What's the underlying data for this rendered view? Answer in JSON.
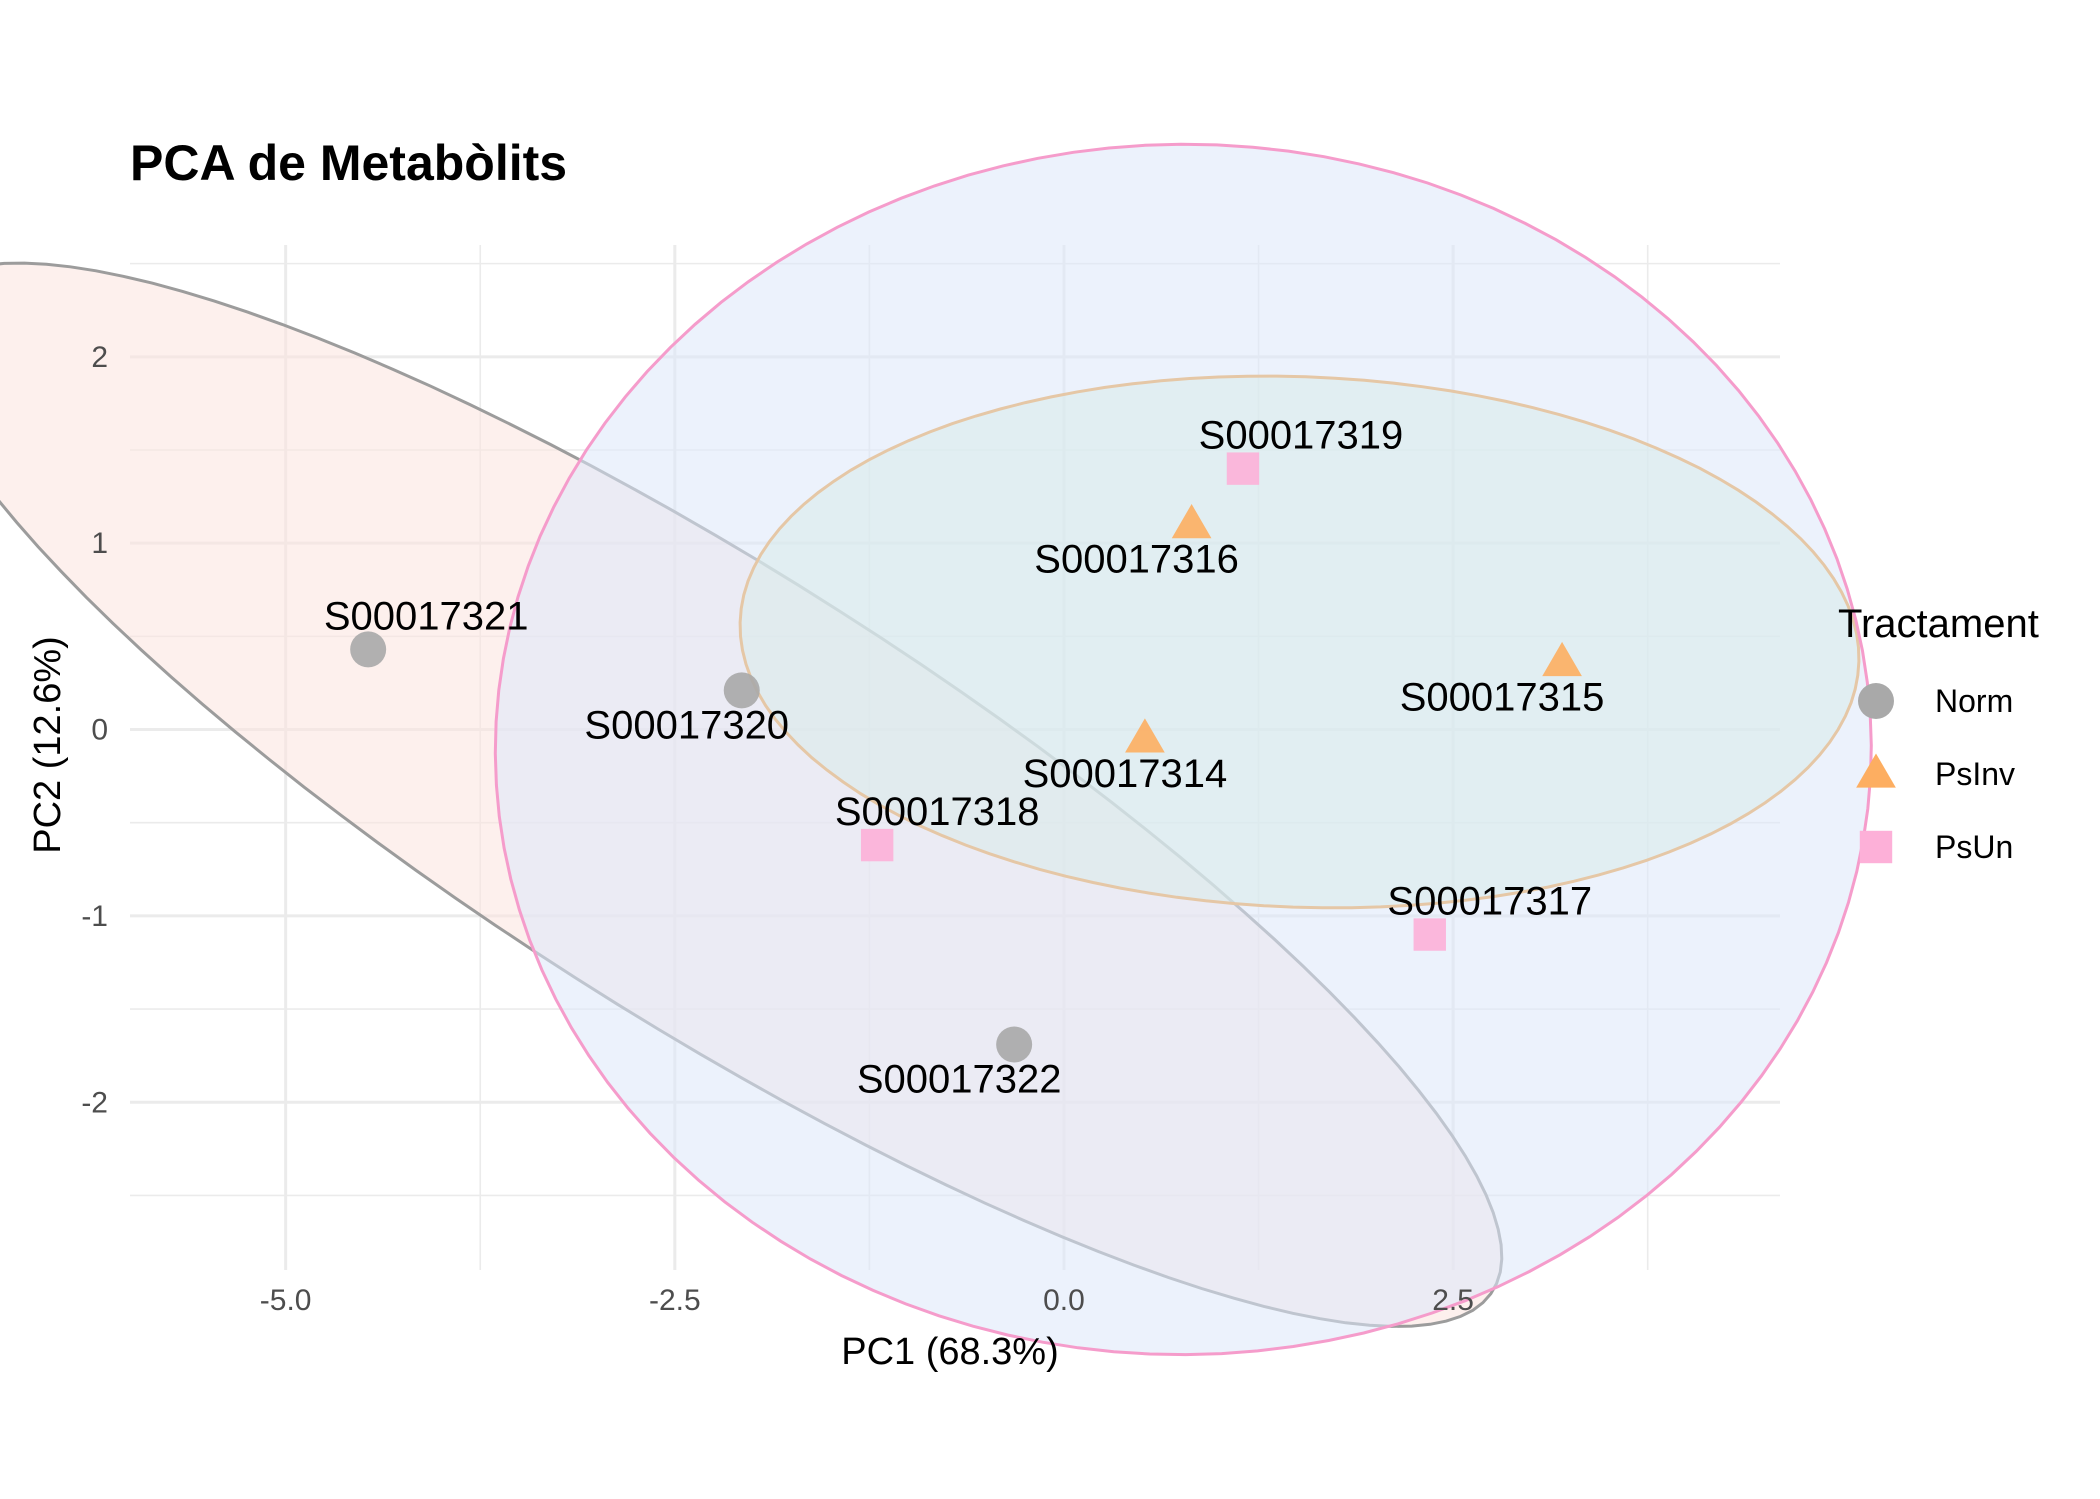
{
  "chart_data": {
    "type": "scatter",
    "title": "PCA de Metabòlits",
    "xlabel": "PC1 (68.3%)",
    "ylabel": "PC2 (12.6%)",
    "xlim": [
      -6.0,
      4.6
    ],
    "ylim": [
      -2.9,
      2.6
    ],
    "x_ticks": [
      -5.0,
      -2.5,
      0.0,
      2.5
    ],
    "x_tick_labels": [
      "-5.0",
      "-2.5",
      "0.0",
      "2.5"
    ],
    "y_ticks": [
      -2,
      -1,
      0,
      1,
      2
    ],
    "y_tick_labels": [
      "-2",
      "-1",
      "0",
      "1",
      "2"
    ],
    "grid": true,
    "legend": {
      "title": "Tractament",
      "placement": "right",
      "entries": [
        {
          "name": "Norm",
          "shape": "circle",
          "color": "#A9A9A9"
        },
        {
          "name": "PsInv",
          "shape": "triangle",
          "color": "#FDAE61"
        },
        {
          "name": "PsUn",
          "shape": "square",
          "color": "#FDB0D8"
        }
      ]
    },
    "series": [
      {
        "name": "Norm",
        "shape": "circle",
        "color": "#A9A9A9",
        "ellipse_stroke": "#9C9C9C",
        "ellipse_fill": "#FBE3DF",
        "points": [
          {
            "label": "S00017321",
            "x": -4.47,
            "y": 0.43
          },
          {
            "label": "S00017320",
            "x": -2.07,
            "y": 0.21
          },
          {
            "label": "S00017322",
            "x": -0.32,
            "y": -1.69
          }
        ]
      },
      {
        "name": "PsInv",
        "shape": "triangle",
        "color": "#FDAE61",
        "ellipse_stroke": "#F0A040",
        "ellipse_fill": "#D3F1D6",
        "points": [
          {
            "label": "S00017316",
            "x": 0.82,
            "y": 1.1
          },
          {
            "label": "S00017315",
            "x": 3.2,
            "y": 0.36
          },
          {
            "label": "S00017314",
            "x": 0.52,
            "y": -0.05
          }
        ]
      },
      {
        "name": "PsUn",
        "shape": "square",
        "color": "#FDB0D8",
        "ellipse_stroke": "#F59CCB",
        "ellipse_fill": "#DCE8FA",
        "points": [
          {
            "label": "S00017319",
            "x": 1.15,
            "y": 1.4
          },
          {
            "label": "S00017318",
            "x": -1.2,
            "y": -0.62
          },
          {
            "label": "S00017317",
            "x": 2.35,
            "y": -1.1
          }
        ]
      }
    ]
  }
}
